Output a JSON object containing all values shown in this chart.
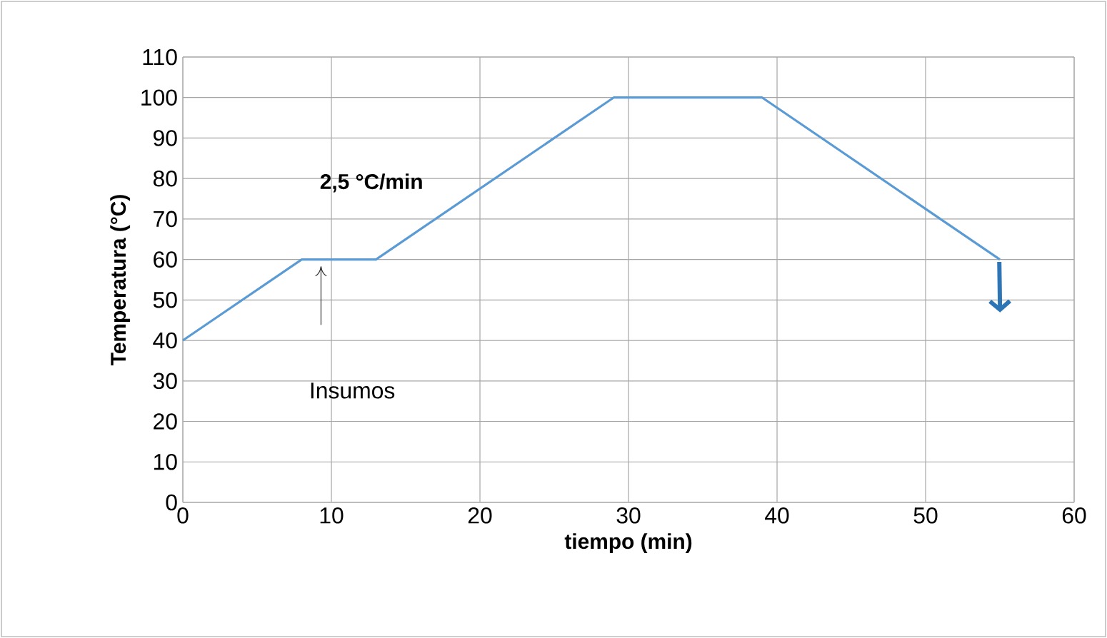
{
  "chart_data": {
    "type": "line",
    "xlabel": "tiempo (min)",
    "ylabel": "Temperatura (°C)",
    "x": [
      0,
      8,
      13,
      29,
      39,
      55
    ],
    "series": [
      {
        "color": "#5b9bd5",
        "values": [
          40,
          60,
          60,
          100,
          100,
          60
        ]
      }
    ],
    "xlim": [
      0,
      60
    ],
    "ylim": [
      0,
      110
    ],
    "xticks": [
      0,
      10,
      20,
      30,
      40,
      50,
      60
    ],
    "yticks": [
      0,
      10,
      20,
      30,
      40,
      50,
      60,
      70,
      80,
      90,
      100,
      110
    ],
    "grid": true,
    "marker": "none",
    "line_style": "solid",
    "annotations": [
      "Insumos",
      "2,5 °C/min"
    ]
  }
}
